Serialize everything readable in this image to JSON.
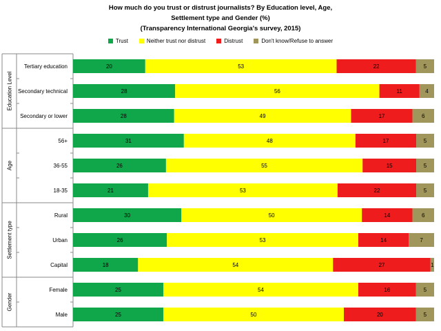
{
  "chart_data": {
    "type": "bar",
    "orientation": "horizontal-stacked-percent",
    "title_lines": [
      "How much do you trust or distrust journalists? By Education level, Age,",
      "Settlement type and Gender (%)",
      "(Transparency International Georgia's survey, 2015)"
    ],
    "legend_placement": "top",
    "grid": false,
    "xlim": [
      0,
      100
    ],
    "series": [
      {
        "name": "Trust",
        "color": "#10a64a"
      },
      {
        "name": "Neither trust nor distrust",
        "color": "#ffff00"
      },
      {
        "name": "Distrust",
        "color": "#ee1c1c"
      },
      {
        "name": "Don't know/Refuse to answer",
        "color": "#a0955a"
      }
    ],
    "groups": [
      {
        "name": "Education Level",
        "rows": [
          {
            "label": "Tertiary education",
            "values": [
              20,
              53,
              22,
              5
            ]
          },
          {
            "label": "Secondary technical",
            "values": [
              28,
              56,
              11,
              4
            ]
          },
          {
            "label": "Secondary or lower",
            "values": [
              28,
              49,
              17,
              6
            ]
          }
        ]
      },
      {
        "name": "Age",
        "rows": [
          {
            "label": "56+",
            "values": [
              31,
              48,
              17,
              5
            ]
          },
          {
            "label": "36-55",
            "values": [
              26,
              55,
              15,
              5
            ]
          },
          {
            "label": "18-35",
            "values": [
              21,
              53,
              22,
              5
            ]
          }
        ]
      },
      {
        "name": "Settlement type",
        "rows": [
          {
            "label": "Rural",
            "values": [
              30,
              50,
              14,
              6
            ]
          },
          {
            "label": "Urban",
            "values": [
              26,
              53,
              14,
              7
            ]
          },
          {
            "label": "Capital",
            "values": [
              18,
              54,
              27,
              1
            ]
          }
        ]
      },
      {
        "name": "Gender",
        "rows": [
          {
            "label": "Female",
            "values": [
              25,
              54,
              16,
              5
            ]
          },
          {
            "label": "Male",
            "values": [
              25,
              50,
              20,
              5
            ]
          }
        ]
      }
    ]
  }
}
